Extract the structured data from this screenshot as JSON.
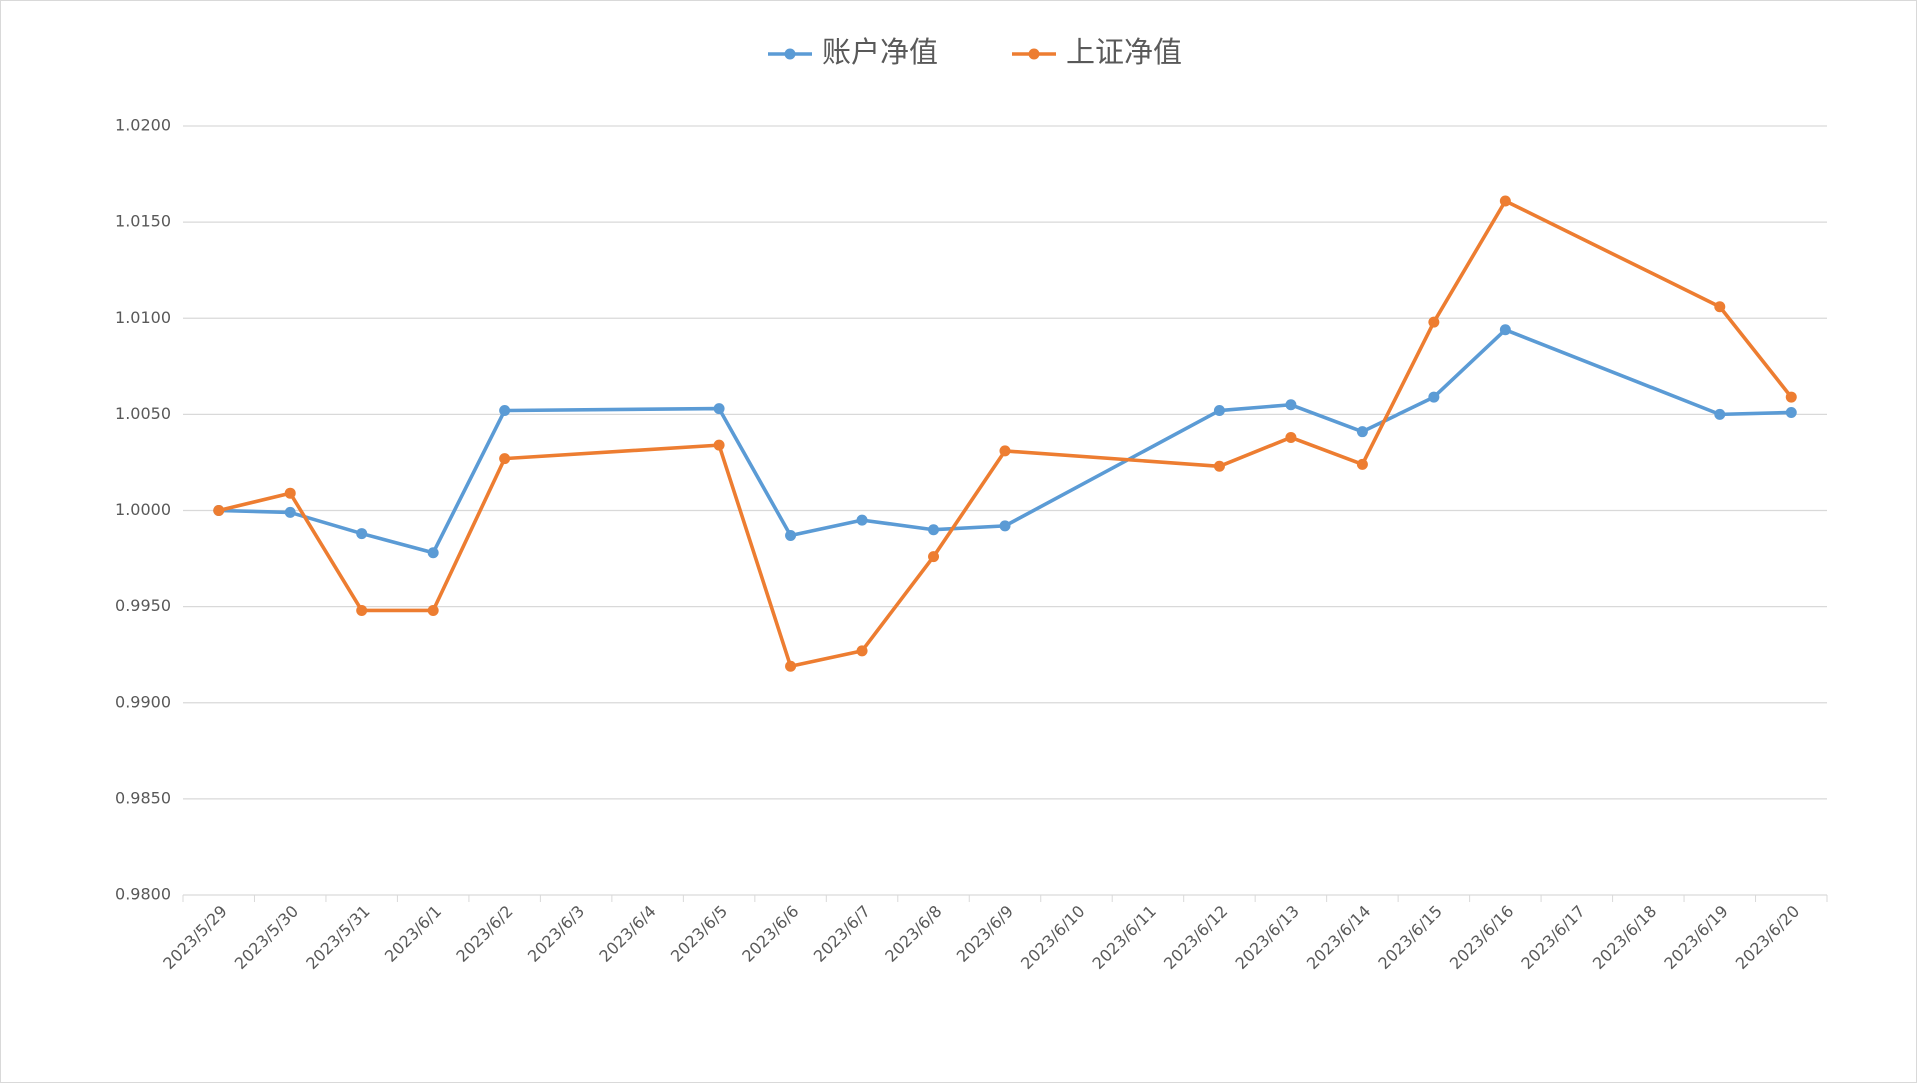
{
  "chart_data": {
    "type": "line",
    "xticks": [
      "2023/5/29",
      "2023/5/30",
      "2023/5/31",
      "2023/6/1",
      "2023/6/2",
      "2023/6/3",
      "2023/6/4",
      "2023/6/5",
      "2023/6/6",
      "2023/6/7",
      "2023/6/8",
      "2023/6/9",
      "2023/6/10",
      "2023/6/11",
      "2023/6/12",
      "2023/6/13",
      "2023/6/14",
      "2023/6/15",
      "2023/6/16",
      "2023/6/17",
      "2023/6/18",
      "2023/6/19",
      "2023/6/20"
    ],
    "x": [
      "2023/5/29",
      "2023/5/30",
      "2023/5/31",
      "2023/6/1",
      "2023/6/2",
      "2023/6/5",
      "2023/6/6",
      "2023/6/7",
      "2023/6/8",
      "2023/6/9",
      "2023/6/12",
      "2023/6/13",
      "2023/6/14",
      "2023/6/15",
      "2023/6/16",
      "2023/6/19",
      "2023/6/20"
    ],
    "series": [
      {
        "name": "账户净值",
        "color": "#5b9bd5",
        "values": [
          1.0,
          0.9999,
          0.9988,
          0.9978,
          1.0052,
          1.0053,
          0.9987,
          0.9995,
          0.999,
          0.9992,
          1.0052,
          1.0055,
          1.0041,
          1.0059,
          1.0094,
          1.005,
          1.0051
        ]
      },
      {
        "name": "上证净值",
        "color": "#ed7d31",
        "values": [
          1.0,
          1.0009,
          0.9948,
          0.9948,
          1.0027,
          1.0034,
          0.9919,
          0.9927,
          0.9976,
          1.0031,
          1.0023,
          1.0038,
          1.0024,
          1.0098,
          1.0161,
          1.0106,
          1.0059
        ]
      }
    ],
    "ylim": [
      0.98,
      1.02
    ],
    "yticks": [
      {
        "value": 0.98,
        "label": "0.9800"
      },
      {
        "value": 0.985,
        "label": "0.9850"
      },
      {
        "value": 0.99,
        "label": "0.9900"
      },
      {
        "value": 0.995,
        "label": "0.9950"
      },
      {
        "value": 1.0,
        "label": "1.0000"
      },
      {
        "value": 1.005,
        "label": "1.0050"
      },
      {
        "value": 1.01,
        "label": "1.0100"
      },
      {
        "value": 1.015,
        "label": "1.0150"
      },
      {
        "value": 1.02,
        "label": "1.0200"
      }
    ],
    "grid": true,
    "legend": "top"
  }
}
